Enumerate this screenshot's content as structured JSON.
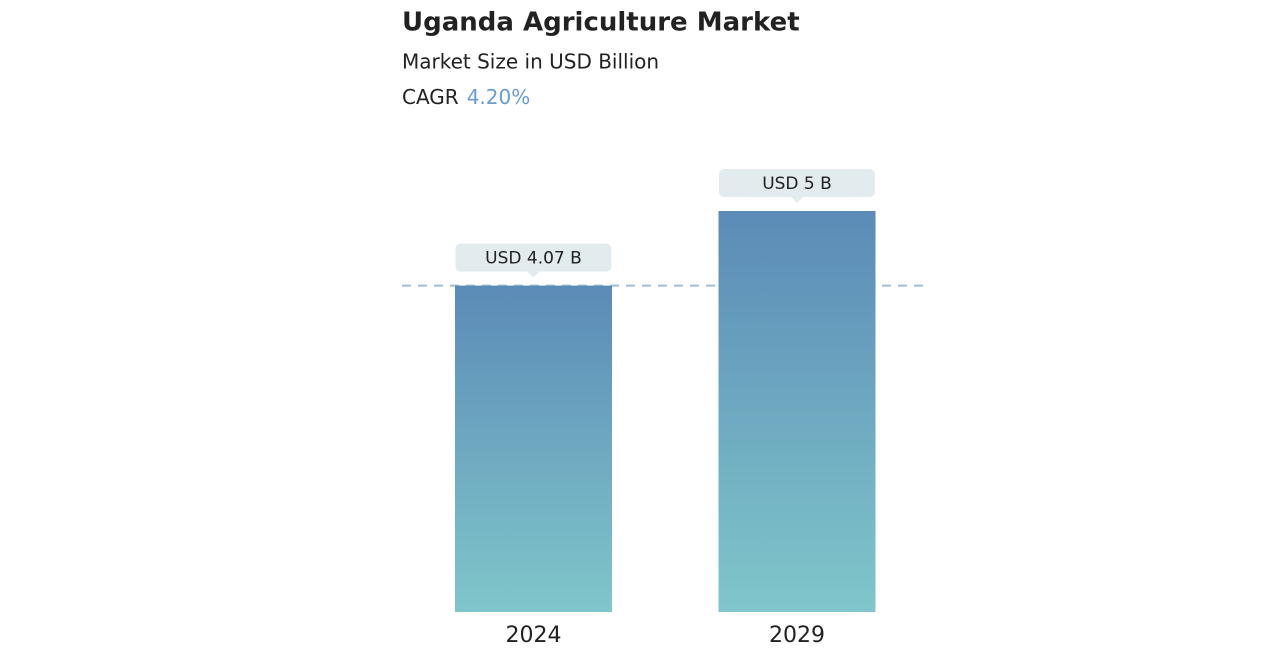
{
  "chart_data": {
    "type": "bar",
    "title": "Uganda Agriculture Market",
    "subtitle": "Market Size in USD Billion",
    "cagr_label": "CAGR",
    "cagr_value": "4.20%",
    "categories": [
      "2024",
      "2029"
    ],
    "values": [
      4.07,
      5
    ],
    "value_labels": [
      "USD 4.07 B",
      "USD 5 B"
    ],
    "ylim": [
      0,
      5
    ],
    "gradient": [
      "#5b8bb7",
      "#80c6ca"
    ],
    "reference_line": true
  }
}
